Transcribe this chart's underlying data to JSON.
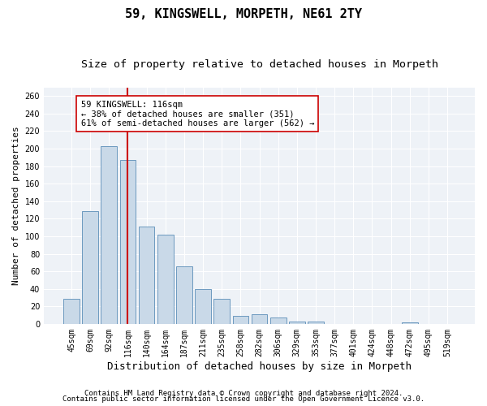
{
  "title": "59, KINGSWELL, MORPETH, NE61 2TY",
  "subtitle": "Size of property relative to detached houses in Morpeth",
  "xlabel": "Distribution of detached houses by size in Morpeth",
  "ylabel": "Number of detached properties",
  "categories": [
    "45sqm",
    "69sqm",
    "92sqm",
    "116sqm",
    "140sqm",
    "164sqm",
    "187sqm",
    "211sqm",
    "235sqm",
    "258sqm",
    "282sqm",
    "306sqm",
    "329sqm",
    "353sqm",
    "377sqm",
    "401sqm",
    "424sqm",
    "448sqm",
    "472sqm",
    "495sqm",
    "519sqm"
  ],
  "values": [
    29,
    129,
    203,
    187,
    111,
    102,
    66,
    40,
    29,
    9,
    11,
    7,
    3,
    3,
    0,
    0,
    0,
    0,
    2,
    0,
    0
  ],
  "bar_color": "#c9d9e8",
  "bar_edge_color": "#5b8db8",
  "vline_x_idx": 3,
  "vline_color": "#cc0000",
  "annotation_text": "59 KINGSWELL: 116sqm\n← 38% of detached houses are smaller (351)\n61% of semi-detached houses are larger (562) →",
  "annotation_box_color": "#ffffff",
  "annotation_box_edge": "#cc0000",
  "ylim": [
    0,
    270
  ],
  "yticks": [
    0,
    20,
    40,
    60,
    80,
    100,
    120,
    140,
    160,
    180,
    200,
    220,
    240,
    260
  ],
  "footer1": "Contains HM Land Registry data © Crown copyright and database right 2024.",
  "footer2": "Contains public sector information licensed under the Open Government Licence v3.0.",
  "title_fontsize": 11,
  "subtitle_fontsize": 9.5,
  "xlabel_fontsize": 9,
  "ylabel_fontsize": 8,
  "tick_fontsize": 7,
  "annotation_fontsize": 7.5,
  "footer_fontsize": 6.5,
  "bg_color": "#eef2f7"
}
